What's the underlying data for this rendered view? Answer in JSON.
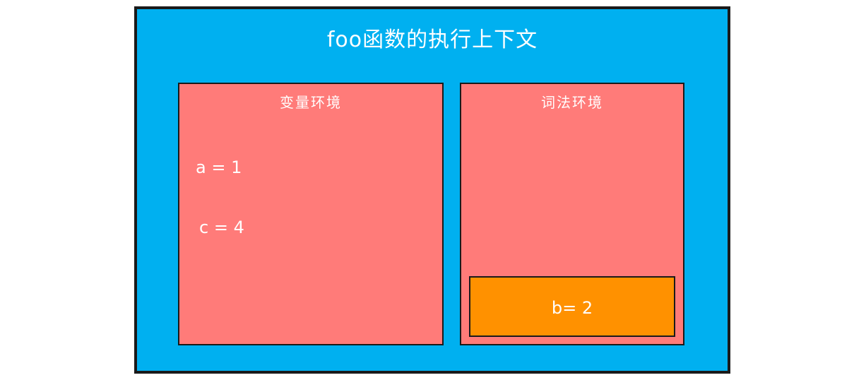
{
  "title": "foo函数的执行上下文",
  "variable_environment": {
    "label": "变量环境",
    "entries": [
      "a = 1",
      "c = 4"
    ]
  },
  "lexical_environment": {
    "label": "词法环境",
    "block_entries": [
      "b= 2"
    ]
  },
  "colors": {
    "context_bg": "#00b0f0",
    "environment_bg": "#ff7b79",
    "block_bg": "#ff9100",
    "text": "#ffffff",
    "border": "#1a1a1a"
  }
}
